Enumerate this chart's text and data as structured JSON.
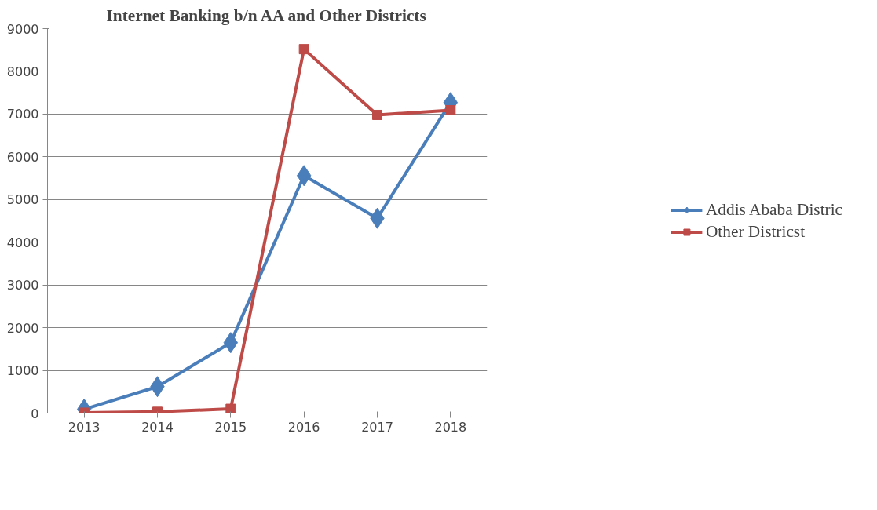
{
  "chart_data": {
    "type": "line",
    "title": "Internet Banking b/n AA and Other Districts",
    "categories": [
      "2013",
      "2014",
      "2015",
      "2016",
      "2017",
      "2018"
    ],
    "series": [
      {
        "name": "Addis Ababa Distric",
        "color": "#4a7ebb",
        "marker": "diamond",
        "values": [
          90,
          620,
          1650,
          5560,
          4560,
          7270
        ]
      },
      {
        "name": "Other Districst",
        "color": "#be4b48",
        "marker": "square",
        "values": [
          10,
          30,
          100,
          8520,
          6980,
          7090
        ]
      }
    ],
    "ylim": [
      0,
      9000
    ],
    "yticks": [
      0,
      1000,
      2000,
      3000,
      4000,
      5000,
      6000,
      7000,
      8000,
      9000
    ],
    "grid": "y",
    "legend": "right",
    "line_style": "solid"
  }
}
